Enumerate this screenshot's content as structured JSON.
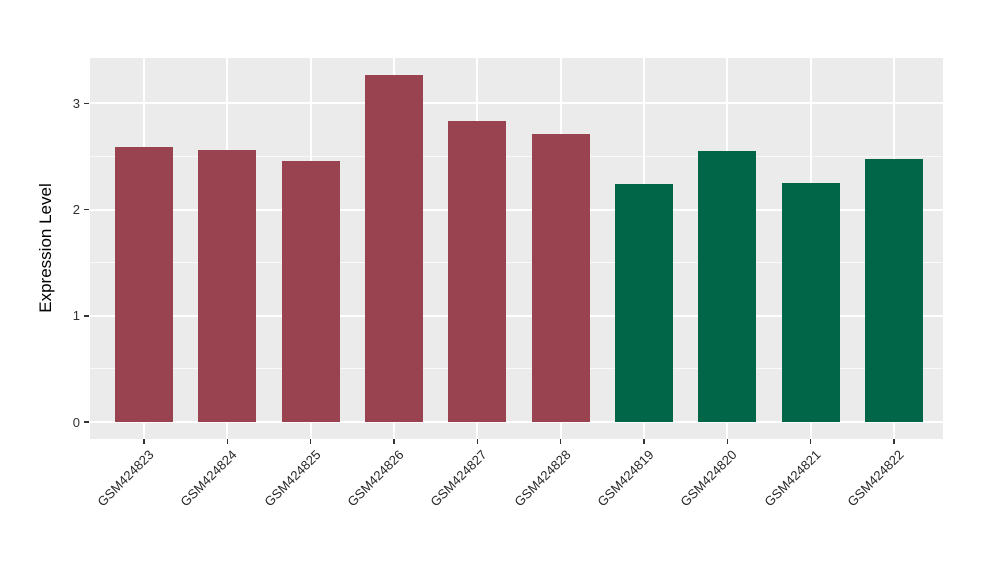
{
  "chart_data": {
    "type": "bar",
    "title": "",
    "ylabel": "Expression Level",
    "xlabel": "",
    "categories": [
      "GSM424823",
      "GSM424824",
      "GSM424825",
      "GSM424826",
      "GSM424827",
      "GSM424828",
      "GSM424819",
      "GSM424820",
      "GSM424821",
      "GSM424822"
    ],
    "values": [
      2.59,
      2.56,
      2.46,
      3.27,
      2.83,
      2.71,
      2.24,
      2.55,
      2.25,
      2.48
    ],
    "bar_colors": [
      "#9A4350",
      "#9A4350",
      "#9A4350",
      "#9A4350",
      "#9A4350",
      "#9A4350",
      "#006647",
      "#006647",
      "#006647",
      "#006647"
    ],
    "y_ticks": [
      0,
      1,
      2,
      3
    ],
    "minor_tick_interval": 0.5,
    "ylim": [
      -0.17,
      3.43
    ],
    "x_tick_rotation_deg": 45,
    "legend": "none",
    "grid": true,
    "panel_background": "#EBEBEB",
    "gridline_color": "#FFFFFF",
    "axis_text_color": "#303030"
  }
}
